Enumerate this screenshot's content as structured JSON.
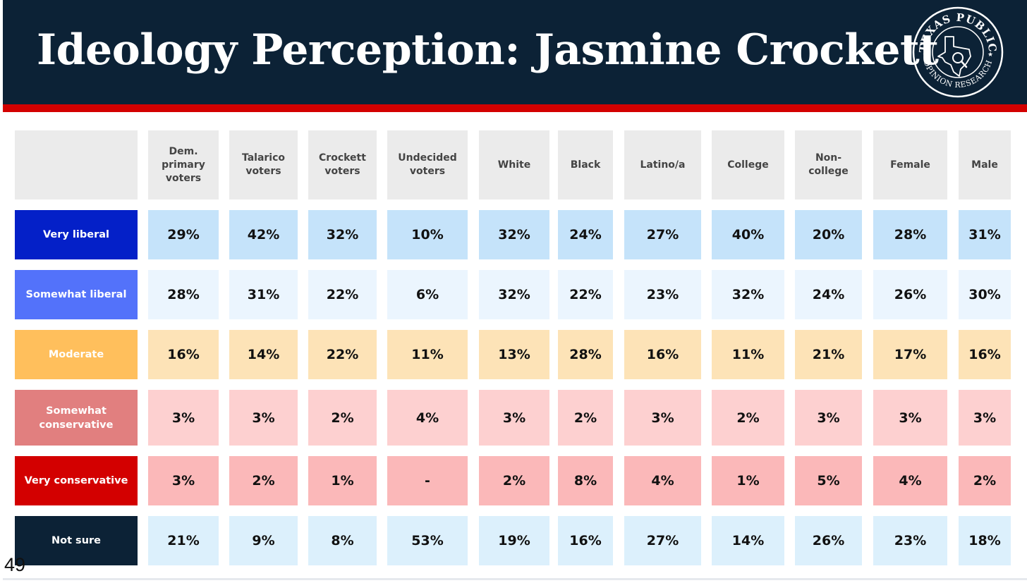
{
  "header": {
    "title": "Ideology Perception: Jasmine Crockett",
    "logo_text": "TEXAS PUBLIC OPINION RESEARCH"
  },
  "page_number": "49",
  "colors": {
    "header_bg": "#0c2236",
    "accent_red": "#d30000",
    "column_header_bg": "#ebebeb"
  },
  "chart_data": {
    "type": "table",
    "title": "Ideology Perception: Jasmine Crockett",
    "columns": [
      "Dem. primary voters",
      "Talarico voters",
      "Crockett voters",
      "Undecided voters",
      "White",
      "Black",
      "Latino/a",
      "College",
      "Non-college",
      "Female",
      "Male"
    ],
    "rows": [
      {
        "label": "Very liberal",
        "label_color": "#0420c8",
        "cell_color": "#c5e3fa",
        "values": [
          "29%",
          "42%",
          "32%",
          "10%",
          "32%",
          "24%",
          "27%",
          "40%",
          "20%",
          "28%",
          "31%"
        ]
      },
      {
        "label": "Somewhat liberal",
        "label_color": "#5372fa",
        "cell_color": "#ebf5fe",
        "values": [
          "28%",
          "31%",
          "22%",
          "6%",
          "32%",
          "22%",
          "23%",
          "32%",
          "24%",
          "26%",
          "30%"
        ]
      },
      {
        "label": "Moderate",
        "label_color": "#ffbf5c",
        "cell_color": "#fde3b7",
        "values": [
          "16%",
          "14%",
          "22%",
          "11%",
          "13%",
          "28%",
          "16%",
          "11%",
          "21%",
          "17%",
          "16%"
        ]
      },
      {
        "label": "Somewhat conservative",
        "label_color": "#e17f7f",
        "cell_color": "#fdd0d0",
        "values": [
          "3%",
          "3%",
          "2%",
          "4%",
          "3%",
          "2%",
          "3%",
          "2%",
          "3%",
          "3%",
          "3%"
        ]
      },
      {
        "label": "Very conservative",
        "label_color": "#d30000",
        "cell_color": "#fbb8b9",
        "values": [
          "3%",
          "2%",
          "1%",
          "-",
          "2%",
          "8%",
          "4%",
          "1%",
          "5%",
          "4%",
          "2%"
        ]
      },
      {
        "label": "Not sure",
        "label_color": "#0c2236",
        "cell_color": "#dcf0fc",
        "values": [
          "21%",
          "9%",
          "8%",
          "53%",
          "19%",
          "16%",
          "27%",
          "14%",
          "26%",
          "23%",
          "18%"
        ]
      }
    ]
  }
}
